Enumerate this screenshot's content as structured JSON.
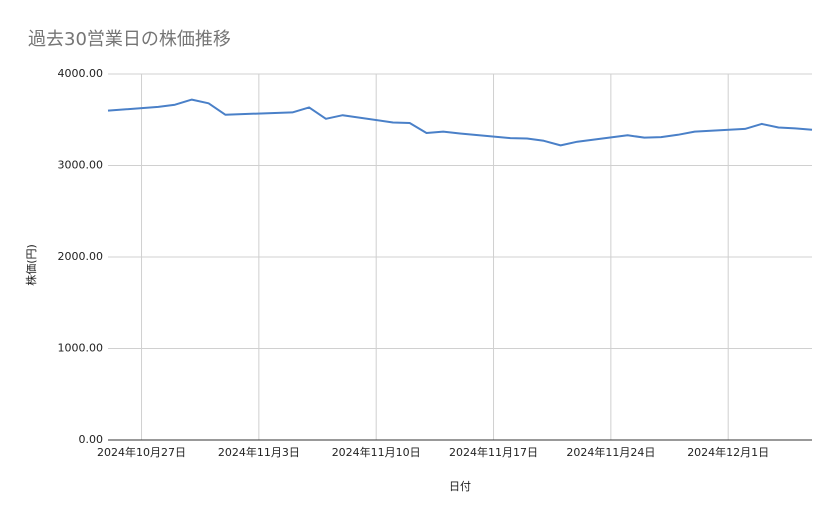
{
  "chart_data": {
    "type": "line",
    "title": "過去30営業日の株価推移",
    "x_label": "日付",
    "y_label": "株価(円)",
    "x": [
      "2024-10-25",
      "2024-10-28",
      "2024-10-29",
      "2024-10-30",
      "2024-10-31",
      "2024-11-01",
      "2024-11-05",
      "2024-11-06",
      "2024-11-07",
      "2024-11-08",
      "2024-11-11",
      "2024-11-12",
      "2024-11-13",
      "2024-11-14",
      "2024-11-15",
      "2024-11-18",
      "2024-11-19",
      "2024-11-20",
      "2024-11-21",
      "2024-11-22",
      "2024-11-25",
      "2024-11-26",
      "2024-11-27",
      "2024-11-28",
      "2024-11-29",
      "2024-12-02",
      "2024-12-03",
      "2024-12-04",
      "2024-12-05",
      "2024-12-06"
    ],
    "series": [
      {
        "name": "株価",
        "color": "#4a80c8",
        "values": [
          3600,
          3640,
          3665,
          3720,
          3680,
          3555,
          3580,
          3635,
          3510,
          3550,
          3470,
          3465,
          3355,
          3370,
          3350,
          3300,
          3295,
          3270,
          3220,
          3260,
          3330,
          3305,
          3310,
          3335,
          3370,
          3400,
          3455,
          3415,
          3405,
          3390
        ]
      }
    ],
    "xlim": [
      "2024-10-25",
      "2024-12-06"
    ],
    "xticks": [
      {
        "value": "2024-10-27",
        "label": "2024年10月27日"
      },
      {
        "value": "2024-11-03",
        "label": "2024年11月3日"
      },
      {
        "value": "2024-11-10",
        "label": "2024年11月10日"
      },
      {
        "value": "2024-11-17",
        "label": "2024年11月17日"
      },
      {
        "value": "2024-11-24",
        "label": "2024年11月24日"
      },
      {
        "value": "2024-12-01",
        "label": "2024年12月1日"
      }
    ],
    "ylim": [
      0,
      4000
    ],
    "yticks": [
      {
        "value": 0,
        "label": "0.00"
      },
      {
        "value": 1000,
        "label": "1000.00"
      },
      {
        "value": 2000,
        "label": "2000.00"
      },
      {
        "value": 3000,
        "label": "3000.00"
      },
      {
        "value": 4000,
        "label": "4000.00"
      }
    ],
    "grid": true
  }
}
